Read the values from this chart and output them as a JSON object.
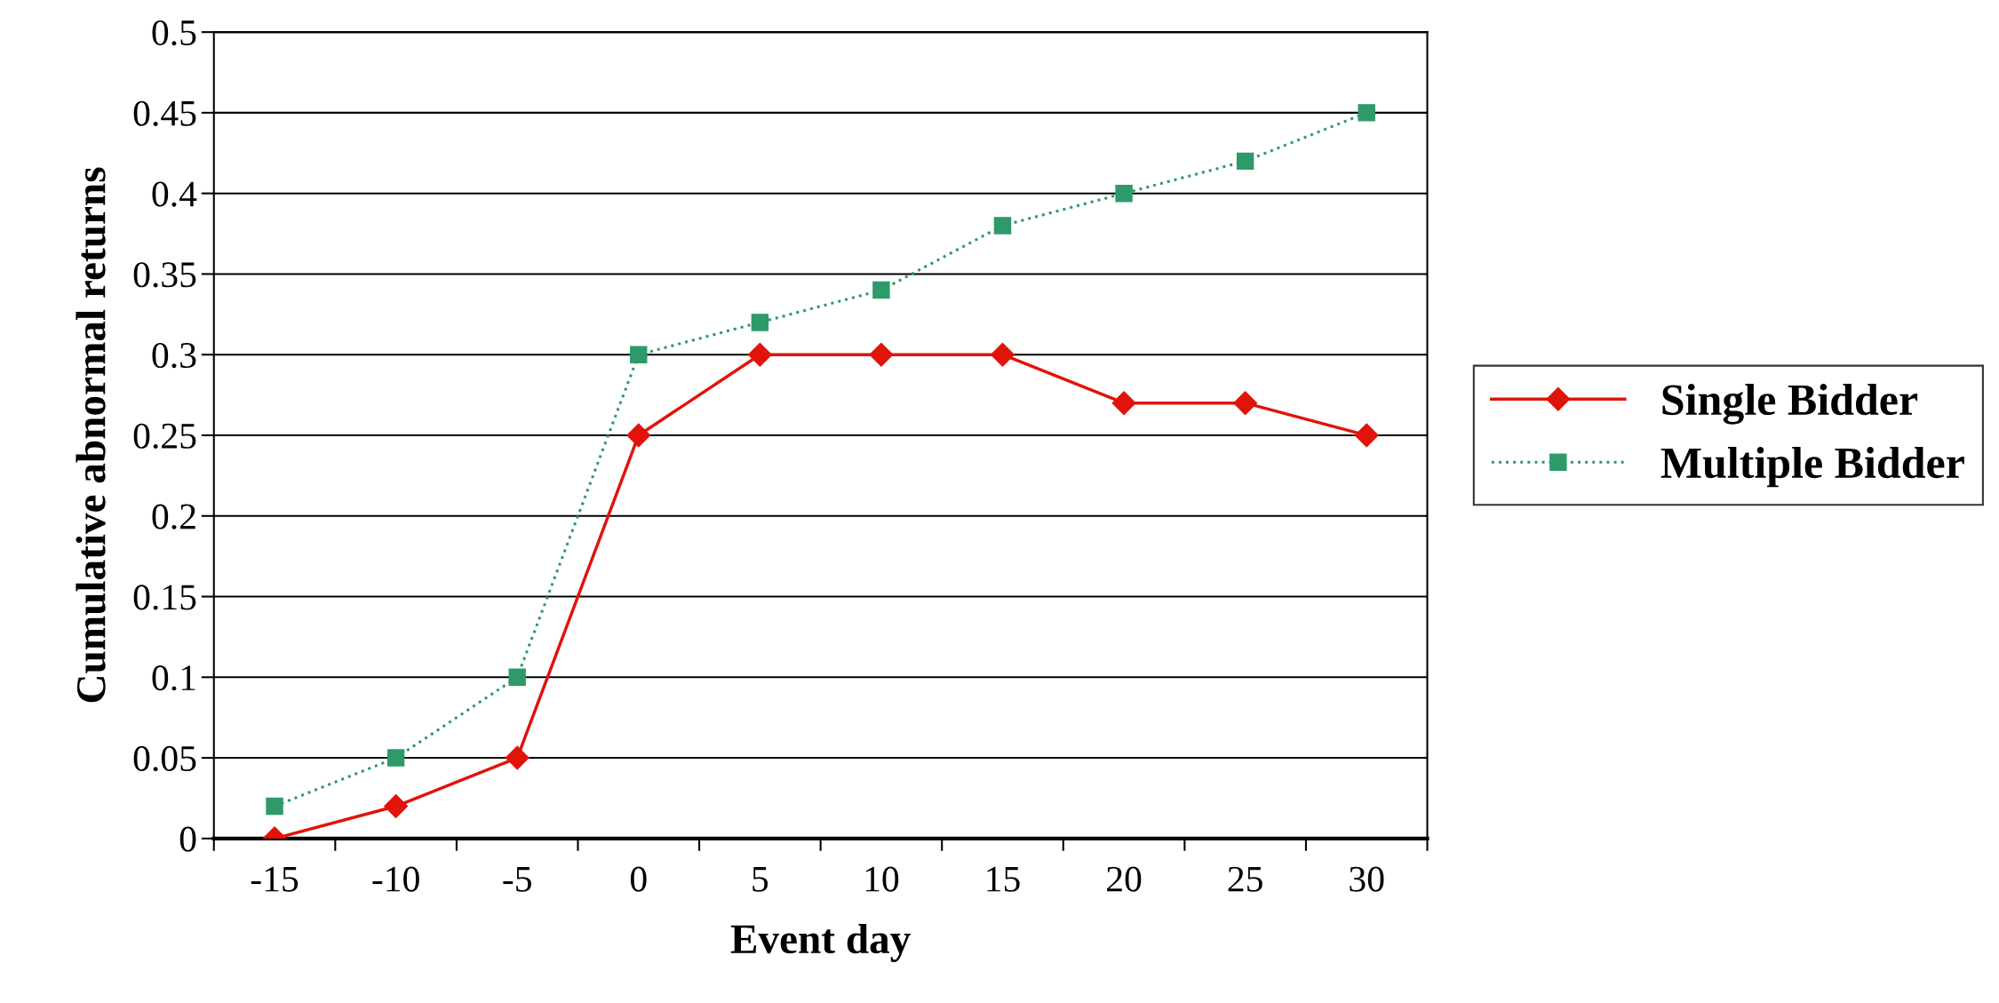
{
  "chart_data": {
    "type": "line",
    "xlabel": "Event day",
    "ylabel": "Cumulative abnormal returns",
    "categories": [
      "-15",
      "-10",
      "-5",
      "0",
      "5",
      "10",
      "15",
      "20",
      "25",
      "30"
    ],
    "series": [
      {
        "name": "Single Bidder",
        "color": "#e0140a",
        "marker": "diamond",
        "line_style": "solid",
        "values": [
          0,
          0.02,
          0.05,
          0.25,
          0.3,
          0.3,
          0.3,
          0.27,
          0.27,
          0.25
        ]
      },
      {
        "name": "Multiple Bidder",
        "color": "#2e9a6a",
        "marker": "square",
        "line_style": "dotted",
        "values": [
          0.02,
          0.05,
          0.1,
          0.3,
          0.32,
          0.34,
          0.38,
          0.4,
          0.42,
          0.45
        ]
      }
    ],
    "ylim": [
      0,
      0.5
    ],
    "yticks": [
      0,
      0.05,
      0.1,
      0.15,
      0.2,
      0.25,
      0.3,
      0.35,
      0.4,
      0.45,
      0.5
    ],
    "grid": "y",
    "legend": "right"
  }
}
